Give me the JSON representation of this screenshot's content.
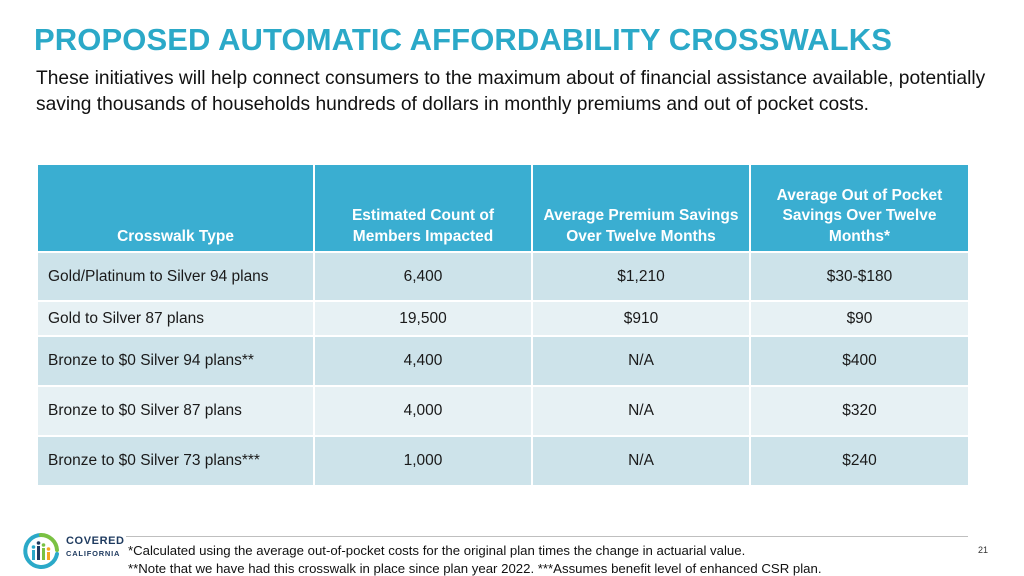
{
  "header": {
    "title": "PROPOSED AUTOMATIC AFFORDABILITY CROSSWALKS",
    "subtitle": "These initiatives will help connect consumers to the maximum about of financial assistance available, potentially saving thousands of households hundreds of dollars in monthly premiums and out of pocket costs."
  },
  "table": {
    "headers": [
      "Crosswalk Type",
      "Estimated Count of Members Impacted",
      "Average Premium Savings Over Twelve Months",
      "Average Out of Pocket Savings Over Twelve Months*"
    ],
    "rows": [
      [
        "Gold/Platinum to Silver 94 plans",
        "6,400",
        "$1,210",
        "$30-$180"
      ],
      [
        "Gold to Silver 87 plans",
        "19,500",
        "$910",
        "$90"
      ],
      [
        "Bronze to $0 Silver 94 plans**",
        "4,400",
        "N/A",
        "$400"
      ],
      [
        "Bronze to $0 Silver 87 plans",
        "4,000",
        "N/A",
        "$320"
      ],
      [
        "Bronze to $0 Silver 73 plans***",
        "1,000",
        "N/A",
        "$240"
      ]
    ]
  },
  "logo": {
    "line1": "COVERED",
    "line2": "CALIFORNIA",
    "colors": {
      "navy": "#1e3a5f",
      "teal": "#2ba9c8",
      "green": "#7ac143",
      "orange": "#f5a623"
    }
  },
  "footer": {
    "footnote1": "*Calculated using the average out-of-pocket costs for the original plan times the change in actuarial value.",
    "footnote2": "**Note that we have had this crosswalk in place since plan year 2022. ***Assumes benefit level of enhanced CSR plan.",
    "page_number": "21"
  },
  "colors": {
    "title": "#2ba9c8",
    "header_bg": "#3aaed1",
    "row_dark": "#cde3ea",
    "row_light": "#e7f1f4"
  }
}
